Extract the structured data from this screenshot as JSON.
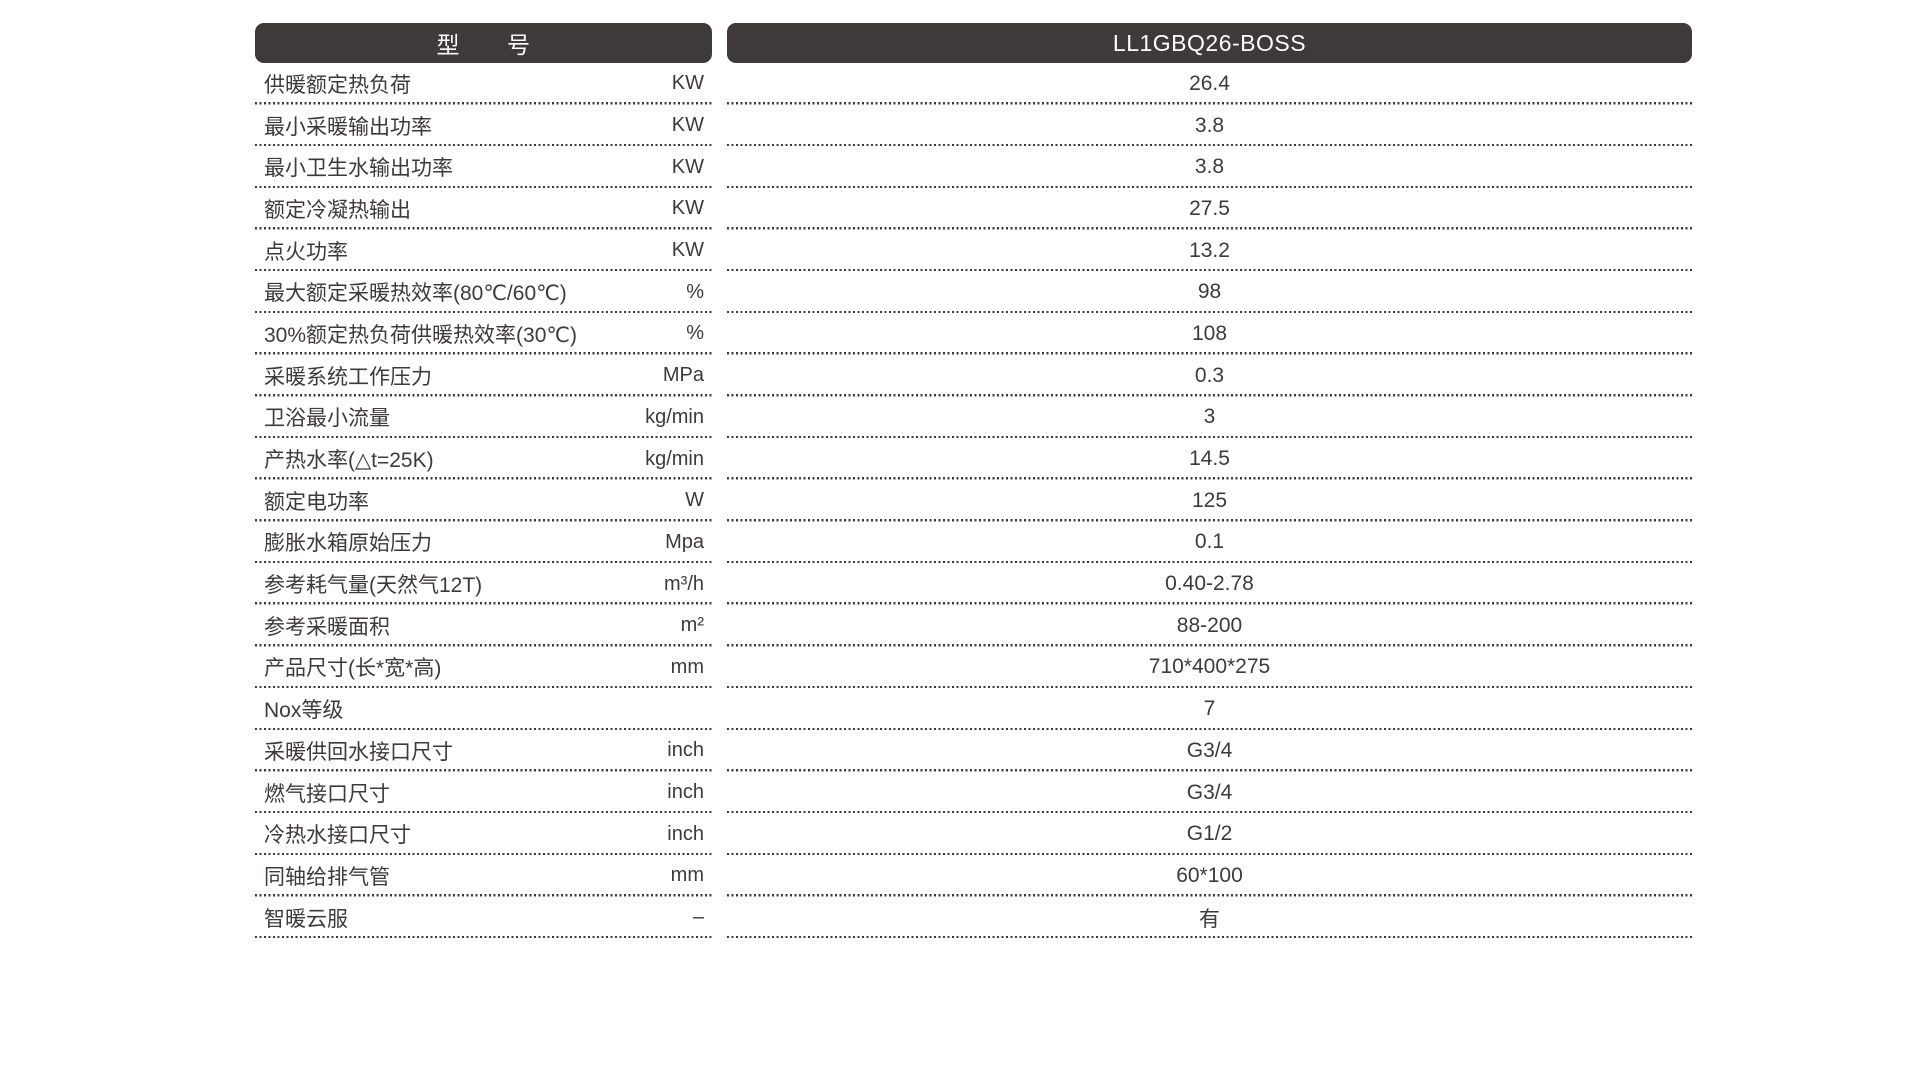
{
  "accent_color": "#3e3a39",
  "background_color": "#ffffff",
  "table": {
    "header": {
      "model_label": "型　　号",
      "model_value": "LL1GBQ26-BOSS"
    },
    "rows": [
      {
        "label": "供暖额定热负荷",
        "unit": "KW",
        "value": "26.4"
      },
      {
        "label": "最小采暖输出功率",
        "unit": "KW",
        "value": "3.8"
      },
      {
        "label": "最小卫生水输出功率",
        "unit": "KW",
        "value": "3.8"
      },
      {
        "label": "额定冷凝热输出",
        "unit": "KW",
        "value": "27.5"
      },
      {
        "label": "点火功率",
        "unit": "KW",
        "value": "13.2"
      },
      {
        "label": "最大额定采暖热效率(80℃/60℃)",
        "unit": "%",
        "value": "98"
      },
      {
        "label": "30%额定热负荷供暖热效率(30℃)",
        "unit": "%",
        "value": "108"
      },
      {
        "label": "采暖系统工作压力",
        "unit": "MPa",
        "value": "0.3"
      },
      {
        "label": "卫浴最小流量",
        "unit": "kg/min",
        "value": "3"
      },
      {
        "label": "产热水率(△t=25K)",
        "unit": "kg/min",
        "value": "14.5"
      },
      {
        "label": "额定电功率",
        "unit": "W",
        "value": "125"
      },
      {
        "label": "膨胀水箱原始压力",
        "unit": "Mpa",
        "value": "0.1"
      },
      {
        "label": "参考耗气量(天然气12T)",
        "unit": "m³/h",
        "value": "0.40-2.78"
      },
      {
        "label": "参考采暖面积",
        "unit": "m²",
        "value": "88-200"
      },
      {
        "label": "产品尺寸(长*宽*高)",
        "unit": "mm",
        "value": "710*400*275"
      },
      {
        "label": "Nox等级",
        "unit": "",
        "value": "7"
      },
      {
        "label": "采暖供回水接口尺寸",
        "unit": "inch",
        "value": "G3/4"
      },
      {
        "label": "燃气接口尺寸",
        "unit": "inch",
        "value": "G3/4"
      },
      {
        "label": "冷热水接口尺寸",
        "unit": "inch",
        "value": "G1/2"
      },
      {
        "label": "同轴给排气管",
        "unit": "mm",
        "value": "60*100"
      },
      {
        "label": "智暖云服",
        "unit": "–",
        "value": "有"
      }
    ]
  }
}
